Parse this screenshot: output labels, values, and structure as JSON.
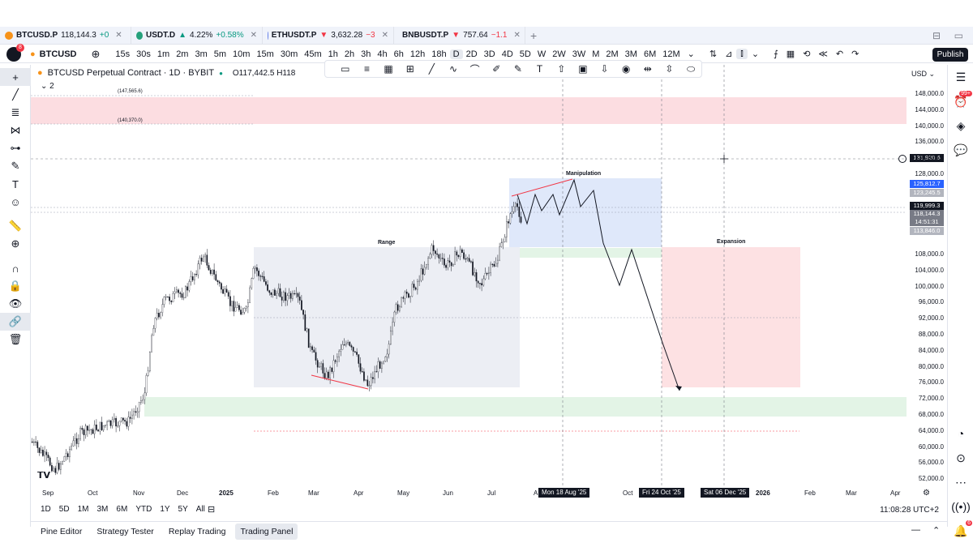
{
  "tabs": [
    {
      "name": "BTCUSD.P",
      "price": "118,144.3",
      "change": "+0",
      "dir": "up",
      "color": "#f7931a"
    },
    {
      "name": "USDT.D",
      "arrow": "▲",
      "price": "4.22%",
      "change": "+0.58%",
      "dir": "up",
      "color": "#26a17b"
    },
    {
      "name": "ETHUSDT.P",
      "arrow": "▼",
      "price": "3,632.28",
      "change": "−3",
      "dir": "down",
      "color": "#627eea"
    },
    {
      "name": "BNBUSDT.P",
      "arrow": "▼",
      "price": "757.64",
      "change": "−1.1",
      "dir": "down",
      "color": "#f3ba2f"
    }
  ],
  "toolbar": {
    "symbol": "BTCUSD",
    "avatar_badge": "8",
    "intervals": [
      "15s",
      "30s",
      "1m",
      "2m",
      "3m",
      "5m",
      "10m",
      "15m",
      "30m",
      "45m",
      "1h",
      "2h",
      "3h",
      "4h",
      "6h",
      "12h",
      "18h",
      "D",
      "2D",
      "3D",
      "4D",
      "5D",
      "W",
      "2W",
      "3W",
      "M",
      "2M",
      "3M",
      "6M",
      "12M"
    ],
    "active_interval": "D",
    "publish_label": "Publish"
  },
  "legend": {
    "title": "BTCUSD Perpetual Contract · 1D · BYBIT",
    "ohlc": "O117,442.5  H118",
    "indicator_count": "2"
  },
  "price_scale": {
    "currency": "USD",
    "labels": [
      "148,000.0",
      "144,000.0",
      "140,000.0",
      "136,000.0",
      "132,000.0",
      "128,000.0",
      "124,000.0",
      "120,000.0",
      "116,000.0",
      "112,000.0",
      "108,000.0",
      "104,000.0",
      "100,000.0",
      "96,000.0",
      "92,000.0",
      "88,000.0",
      "84,000.0",
      "80,000.0",
      "76,000.0",
      "72,000.0",
      "68,000.0",
      "64,000.0",
      "60,000.0",
      "56,000.0",
      "52,000.0"
    ],
    "crosshair_price": "131,920.6",
    "tag_1": "125,812.7",
    "tag_2": "123,245.5",
    "tag_3": "119,999.3",
    "tag_4": "118,144.3",
    "tag_5": "14:51:31",
    "tag_6": "113,846.0"
  },
  "time_scale": {
    "labels": [
      "Sep",
      "Oct",
      "Nov",
      "Dec",
      "2025",
      "Feb",
      "Mar",
      "Apr",
      "May",
      "Jun",
      "Jul",
      "A",
      "Oct",
      "2026",
      "Feb",
      "Mar",
      "Apr"
    ],
    "box_1": "Mon 18 Aug '25",
    "box_2": "Fri 24 Oct '25",
    "box_3": "Sat 06 Dec '25"
  },
  "annotations": {
    "range": "Range",
    "manipulation": "Manipulation",
    "expansion": "Expansion",
    "level_1": "(147,565.6)",
    "level_2": "(140,370.0)"
  },
  "ranges": [
    "1D",
    "5D",
    "1M",
    "3M",
    "6M",
    "YTD",
    "1Y",
    "5Y",
    "All"
  ],
  "clock": "11:08:28 UTC+2",
  "bottom_tabs": [
    "Pine Editor",
    "Strategy Tester",
    "Replay Trading",
    "Trading Panel"
  ],
  "active_bottom_tab": "Trading Panel",
  "right_badges": {
    "alerts": "99+",
    "notifications": "6"
  },
  "colors": {
    "up": "#089981",
    "down": "#f23645",
    "supply_zone": "#fbd5d9",
    "demand_zone": "#e3f4e6",
    "range_box": "#eceef4",
    "manipulation_box": "#dbe5fa",
    "expansion_box": "#fde1e3"
  }
}
